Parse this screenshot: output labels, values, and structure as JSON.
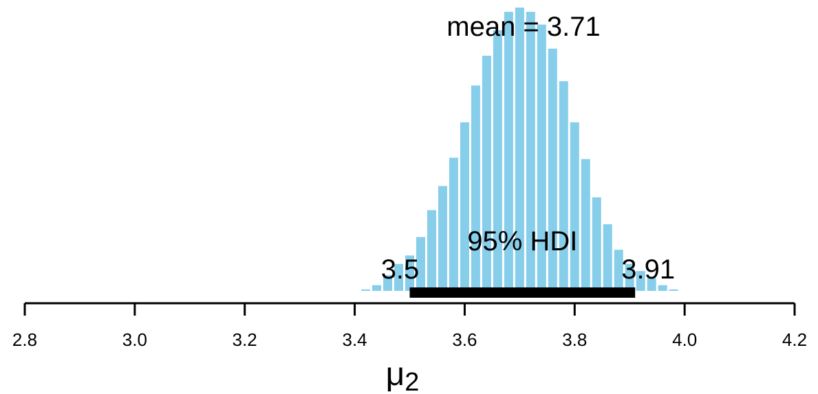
{
  "chart_data": {
    "type": "bar",
    "xlabel": "μ",
    "xlabel_subscript": "2",
    "xlim": [
      2.8,
      4.2
    ],
    "x_ticks": [
      "2.8",
      "3.0",
      "3.2",
      "3.4",
      "3.6",
      "3.8",
      "4.0",
      "4.2"
    ],
    "bar_color": "#87ceeb",
    "hdi_color": "#000000",
    "bin_width": 0.02,
    "bins": [
      {
        "x": 3.42,
        "y": 0.5
      },
      {
        "x": 3.44,
        "y": 2.0
      },
      {
        "x": 3.46,
        "y": 5.5
      },
      {
        "x": 3.48,
        "y": 9.5
      },
      {
        "x": 3.5,
        "y": 12.5
      },
      {
        "x": 3.52,
        "y": 19.0
      },
      {
        "x": 3.54,
        "y": 28.5
      },
      {
        "x": 3.56,
        "y": 37.0
      },
      {
        "x": 3.58,
        "y": 47.0
      },
      {
        "x": 3.6,
        "y": 59.5
      },
      {
        "x": 3.62,
        "y": 72.5
      },
      {
        "x": 3.64,
        "y": 83.0
      },
      {
        "x": 3.66,
        "y": 92.0
      },
      {
        "x": 3.68,
        "y": 98.5
      },
      {
        "x": 3.7,
        "y": 100.0
      },
      {
        "x": 3.72,
        "y": 98.5
      },
      {
        "x": 3.74,
        "y": 94.0
      },
      {
        "x": 3.76,
        "y": 85.5
      },
      {
        "x": 3.78,
        "y": 74.0
      },
      {
        "x": 3.8,
        "y": 59.5
      },
      {
        "x": 3.82,
        "y": 46.5
      },
      {
        "x": 3.84,
        "y": 33.0
      },
      {
        "x": 3.86,
        "y": 23.5
      },
      {
        "x": 3.88,
        "y": 14.5
      },
      {
        "x": 3.9,
        "y": 9.5
      },
      {
        "x": 3.92,
        "y": 7.0
      },
      {
        "x": 3.94,
        "y": 4.5
      },
      {
        "x": 3.96,
        "y": 2.0
      },
      {
        "x": 3.98,
        "y": 0.5
      }
    ],
    "mean_label": "mean = 3.71",
    "hdi": {
      "label": "95% HDI",
      "low": 3.5,
      "high": 3.91,
      "low_label": "3.5",
      "high_label": "3.91"
    }
  }
}
